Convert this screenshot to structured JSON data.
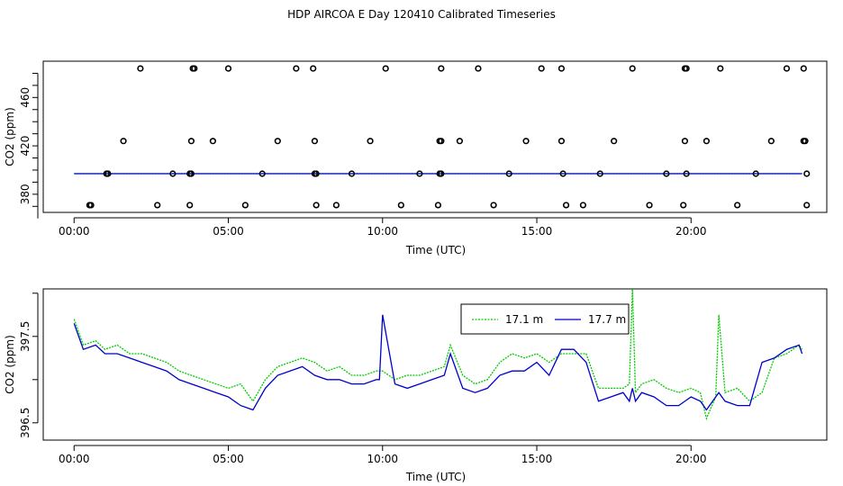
{
  "title": "HDP AIRCOA E  Day 120410  Calibrated Timeseries",
  "colors": {
    "green": "#00cc00",
    "blue": "#0000cc"
  },
  "chart_data": [
    {
      "type": "scatter",
      "xlabel": "Time (UTC)",
      "ylabel": "CO2 (ppm)",
      "x_tick_labels": [
        "00:00",
        "05:00",
        "10:00",
        "15:00",
        "20:00"
      ],
      "x_ticks_hours": [
        0,
        5,
        10,
        15,
        20
      ],
      "y_ticks": [
        380,
        420,
        460
      ],
      "xlim": [
        -1,
        24.4
      ],
      "ylim": [
        365,
        490
      ],
      "grid": false,
      "points": {
        "marker": "open-circle",
        "x": [
          0.5,
          2.15,
          3.85,
          3.9,
          5.0,
          7.2,
          7.75,
          10.1,
          11.9,
          13.1,
          15.15,
          15.8,
          18.1,
          19.8,
          19.85,
          20.95,
          23.1,
          23.65,
          1.6,
          3.8,
          4.5,
          6.6,
          7.8,
          9.6,
          11.85,
          11.9,
          12.5,
          14.65,
          15.8,
          17.5,
          19.8,
          20.5,
          22.6,
          23.65,
          23.7,
          1.05,
          1.1,
          3.2,
          3.75,
          3.8,
          6.1,
          7.8,
          7.85,
          9.0,
          11.2,
          11.85,
          11.9,
          14.1,
          15.85,
          17.05,
          19.2,
          19.85,
          22.1,
          23.75,
          0.55,
          2.7,
          3.75,
          5.55,
          7.85,
          8.5,
          10.6,
          11.8,
          13.6,
          15.95,
          16.5,
          18.65,
          19.75,
          21.5,
          23.75
        ],
        "y": [
          371,
          484,
          484,
          484,
          484,
          484,
          484,
          484,
          484,
          484,
          484,
          484,
          484,
          484,
          484,
          484,
          484,
          484,
          424,
          424,
          424,
          424,
          424,
          424,
          424,
          424,
          424,
          424,
          424,
          424,
          424,
          424,
          424,
          424,
          424,
          397,
          397,
          397,
          397,
          397,
          397,
          397,
          397,
          397,
          397,
          397,
          397,
          397,
          397,
          397,
          397,
          397,
          397,
          397,
          371,
          371,
          371,
          371,
          371,
          371,
          371,
          371,
          371,
          371,
          371,
          371,
          371,
          371,
          371
        ]
      },
      "series": [
        {
          "color": "#00cc00",
          "x": [
            0,
            23.6
          ],
          "values": [
            397.1,
            397.1
          ]
        },
        {
          "color": "#0000cc",
          "x": [
            0,
            23.6
          ],
          "values": [
            397.0,
            397.0
          ]
        }
      ]
    },
    {
      "type": "line",
      "xlabel": "Time (UTC)",
      "ylabel": "CO2 (ppm)",
      "x_tick_labels": [
        "00:00",
        "05:00",
        "10:00",
        "15:00",
        "20:00"
      ],
      "x_ticks_hours": [
        0,
        5,
        10,
        15,
        20
      ],
      "y_ticks": [
        396.5,
        397.5
      ],
      "y_tick_labels": [
        "396.5",
        "397.5"
      ],
      "xlim": [
        -1,
        24.4
      ],
      "ylim": [
        396.3,
        398.05
      ],
      "grid": false,
      "legend": {
        "position": "top-center",
        "entries": [
          "17.1 m",
          "17.7 m"
        ]
      },
      "series": [
        {
          "name": "17.1 m",
          "color": "#00cc00",
          "x": [
            0,
            0.3,
            0.7,
            1.0,
            1.4,
            1.8,
            2.2,
            2.6,
            3.0,
            3.4,
            3.8,
            4.2,
            4.6,
            5.0,
            5.4,
            5.8,
            6.2,
            6.6,
            7.0,
            7.4,
            7.8,
            8.2,
            8.6,
            9.0,
            9.4,
            9.8,
            10.0,
            10.4,
            10.8,
            11.2,
            11.6,
            12.0,
            12.2,
            12.6,
            13.0,
            13.4,
            13.8,
            14.2,
            14.6,
            15.0,
            15.4,
            15.8,
            16.2,
            16.6,
            17.0,
            17.4,
            17.8,
            18.0,
            18.1,
            18.2,
            18.4,
            18.8,
            19.2,
            19.6,
            20.0,
            20.3,
            20.5,
            20.8,
            20.9,
            21.1,
            21.5,
            21.9,
            22.3,
            22.7,
            23.1,
            23.5,
            23.6
          ],
          "values": [
            397.7,
            397.4,
            397.45,
            397.35,
            397.4,
            397.3,
            397.3,
            397.25,
            397.2,
            397.1,
            397.05,
            397.0,
            396.95,
            396.9,
            396.95,
            396.75,
            397.0,
            397.15,
            397.2,
            397.25,
            397.2,
            397.1,
            397.15,
            397.05,
            397.05,
            397.1,
            397.1,
            397.0,
            397.05,
            397.05,
            397.1,
            397.15,
            397.4,
            397.05,
            396.95,
            397.0,
            397.2,
            397.3,
            397.25,
            397.3,
            397.2,
            397.3,
            397.3,
            397.3,
            396.9,
            396.9,
            396.9,
            396.95,
            398.05,
            396.85,
            396.95,
            397.0,
            396.9,
            396.85,
            396.9,
            396.85,
            396.55,
            396.8,
            397.75,
            396.85,
            396.9,
            396.75,
            396.85,
            397.25,
            397.3,
            397.4,
            397.35
          ]
        },
        {
          "name": "17.7 m",
          "color": "#0000cc",
          "x": [
            0,
            0.3,
            0.7,
            1.0,
            1.4,
            1.8,
            2.2,
            2.6,
            3.0,
            3.4,
            3.8,
            4.2,
            4.6,
            5.0,
            5.4,
            5.8,
            6.2,
            6.6,
            7.0,
            7.4,
            7.8,
            8.2,
            8.6,
            9.0,
            9.4,
            9.8,
            9.9,
            10.0,
            10.4,
            10.8,
            11.2,
            11.6,
            12.0,
            12.2,
            12.6,
            13.0,
            13.4,
            13.8,
            14.2,
            14.6,
            15.0,
            15.4,
            15.8,
            16.2,
            16.6,
            17.0,
            17.4,
            17.8,
            18.0,
            18.1,
            18.2,
            18.4,
            18.8,
            19.2,
            19.6,
            20.0,
            20.3,
            20.5,
            20.8,
            20.9,
            21.1,
            21.5,
            21.9,
            22.3,
            22.7,
            23.1,
            23.5,
            23.6
          ],
          "values": [
            397.65,
            397.35,
            397.4,
            397.3,
            397.3,
            397.25,
            397.2,
            397.15,
            397.1,
            397.0,
            396.95,
            396.9,
            396.85,
            396.8,
            396.7,
            396.65,
            396.9,
            397.05,
            397.1,
            397.15,
            397.05,
            397.0,
            397.0,
            396.95,
            396.95,
            397.0,
            397.0,
            397.75,
            396.95,
            396.9,
            396.95,
            397.0,
            397.05,
            397.3,
            396.9,
            396.85,
            396.9,
            397.05,
            397.1,
            397.1,
            397.2,
            397.05,
            397.35,
            397.35,
            397.2,
            396.75,
            396.8,
            396.85,
            396.75,
            396.9,
            396.75,
            396.85,
            396.8,
            396.7,
            396.7,
            396.8,
            396.75,
            396.65,
            396.8,
            396.85,
            396.75,
            396.7,
            396.7,
            397.2,
            397.25,
            397.35,
            397.4,
            397.3
          ]
        }
      ]
    }
  ]
}
